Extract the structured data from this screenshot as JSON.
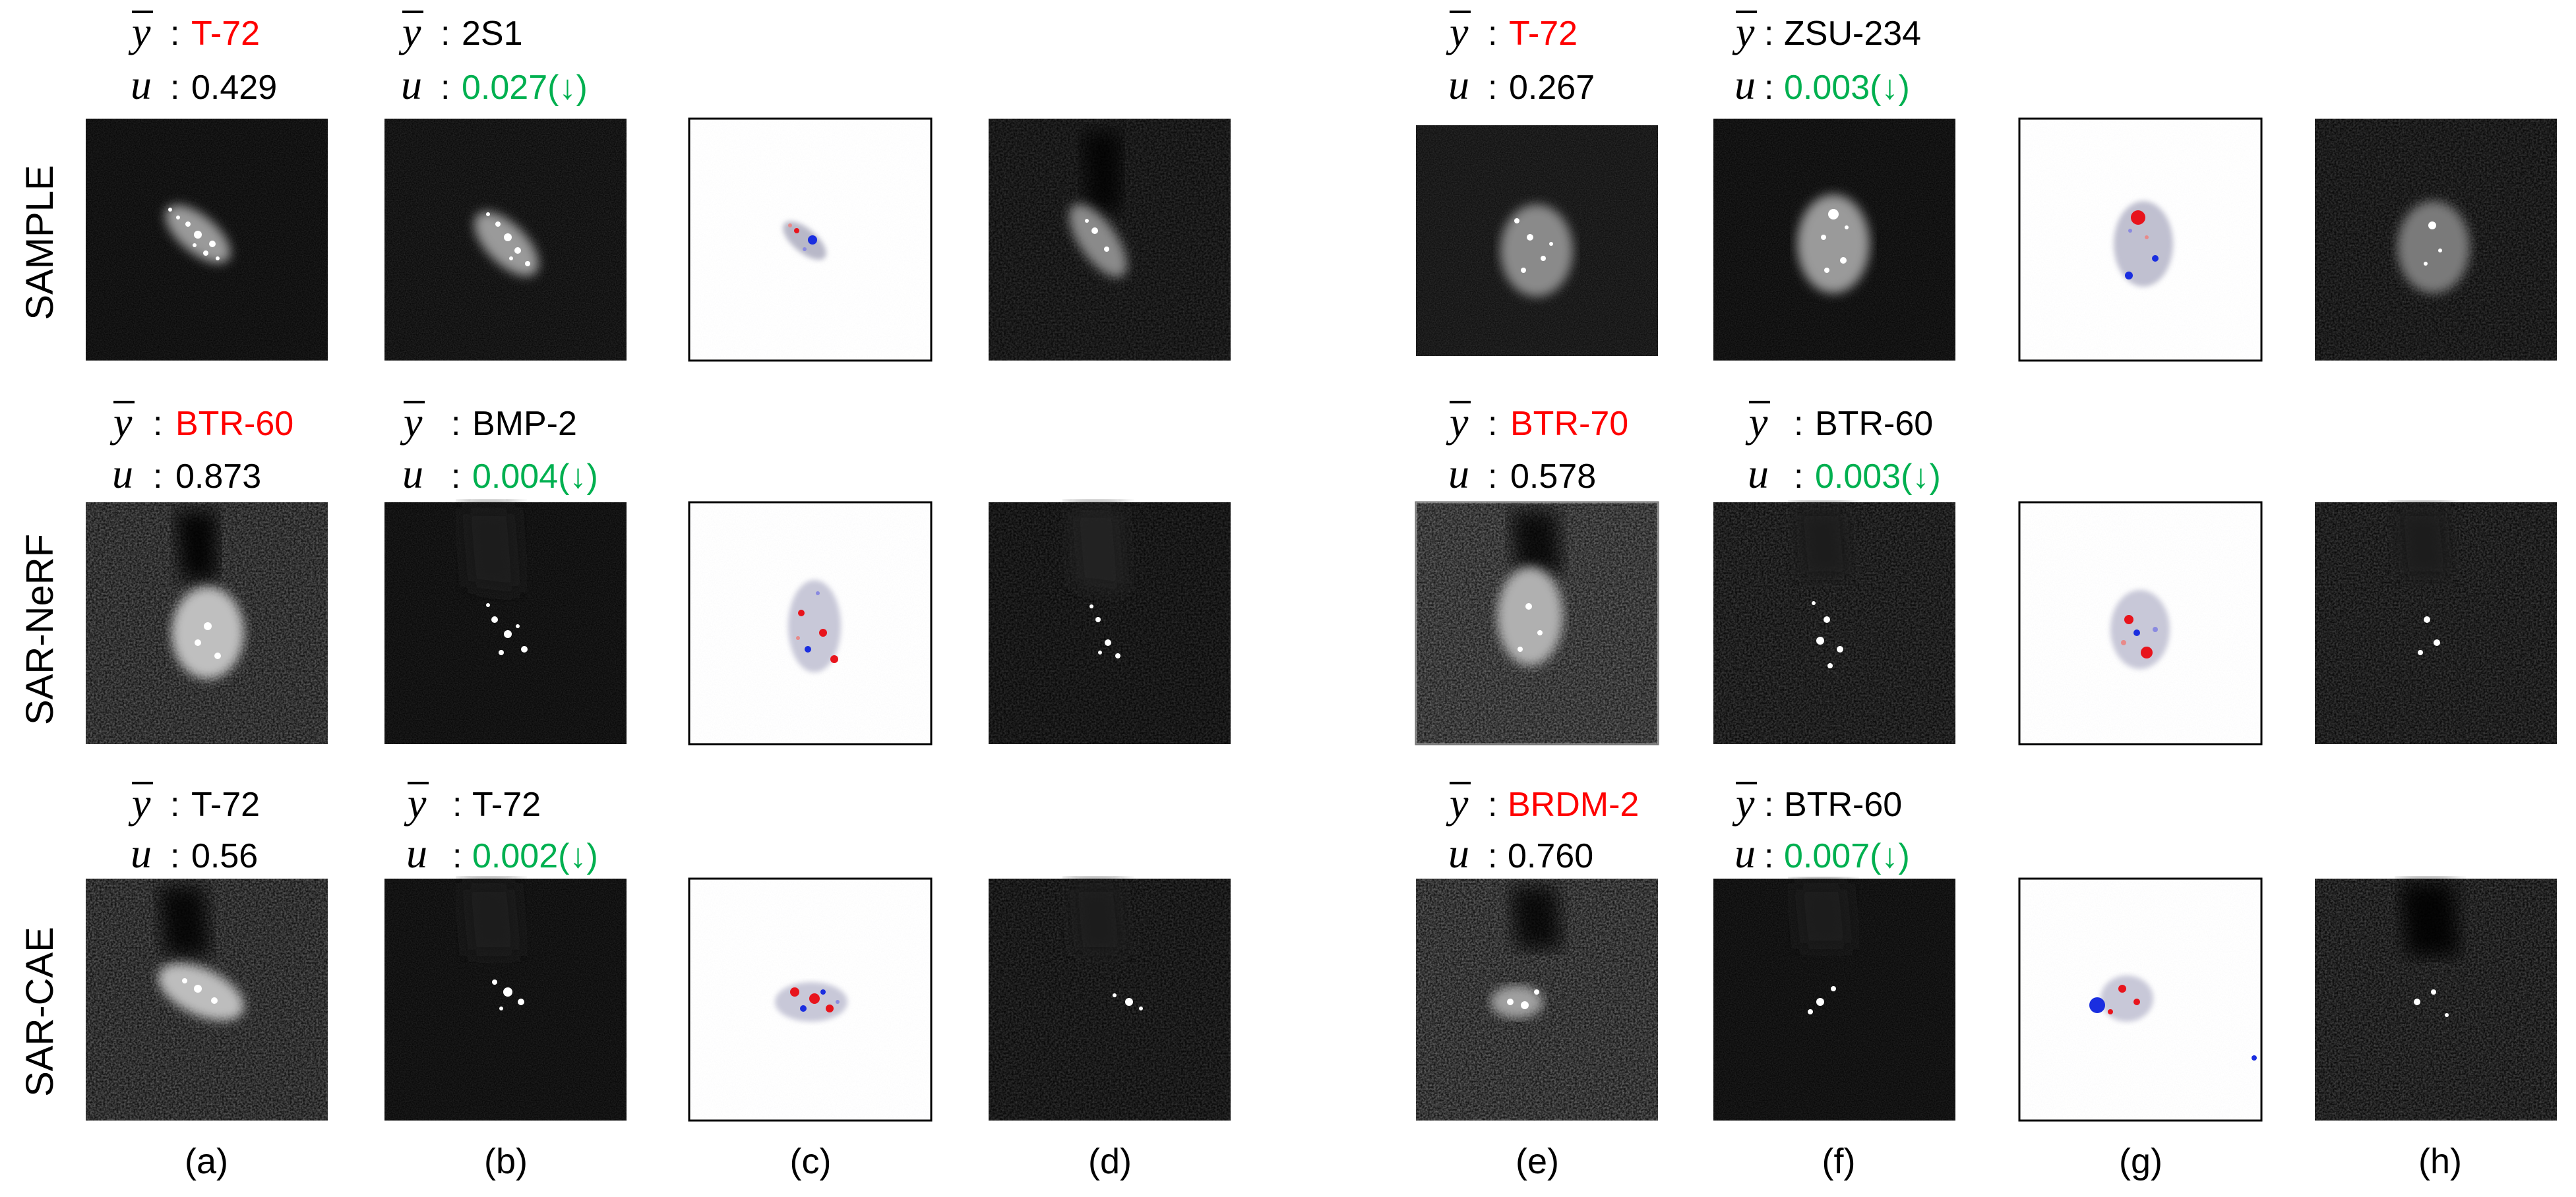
{
  "figure": {
    "row_labels": [
      "SAMPLE",
      "SAR-NeRF",
      "SAR-CAE"
    ],
    "column_labels": [
      "(a)",
      "(b)",
      "(c)",
      "(d)",
      "(e)",
      "(f)",
      "(g)",
      "(h)"
    ],
    "symbols": {
      "y_bar": "y",
      "u": "u",
      "separator": ":"
    },
    "colors": {
      "red": "#ff0000",
      "green": "#00b050",
      "black": "#000000",
      "heatmap_red": "#e8141c",
      "heatmap_blue": "#1a2ee0"
    },
    "annotations": [
      {
        "row": 0,
        "col": "a",
        "y": "T-72",
        "y_color": "red",
        "u": "0.429",
        "u_color": "black"
      },
      {
        "row": 0,
        "col": "b",
        "y": "2S1",
        "y_color": "black",
        "u": "0.027(↓)",
        "u_color": "green"
      },
      {
        "row": 0,
        "col": "e",
        "y": "T-72",
        "y_color": "red",
        "u": "0.267",
        "u_color": "black"
      },
      {
        "row": 0,
        "col": "f",
        "y": "ZSU-234",
        "y_color": "black",
        "u": "0.003(↓)",
        "u_color": "green"
      },
      {
        "row": 1,
        "col": "a",
        "y": "BTR-60",
        "y_color": "red",
        "u": "0.873",
        "u_color": "black"
      },
      {
        "row": 1,
        "col": "b",
        "y": "BMP-2",
        "y_color": "black",
        "u": "0.004(↓)",
        "u_color": "green"
      },
      {
        "row": 1,
        "col": "e",
        "y": "BTR-70",
        "y_color": "red",
        "u": "0.578",
        "u_color": "black"
      },
      {
        "row": 1,
        "col": "f",
        "y": "BTR-60",
        "y_color": "black",
        "u": "0.003(↓)",
        "u_color": "green"
      },
      {
        "row": 2,
        "col": "a",
        "y": "T-72",
        "y_color": "black",
        "u": "0.56",
        "u_color": "black"
      },
      {
        "row": 2,
        "col": "b",
        "y": "T-72",
        "y_color": "black",
        "u": "0.002(↓)",
        "u_color": "green"
      },
      {
        "row": 2,
        "col": "e",
        "y": "BRDM-2",
        "y_color": "red",
        "u": "0.760",
        "u_color": "black"
      },
      {
        "row": 2,
        "col": "f",
        "y": "BTR-60",
        "y_color": "black",
        "u": "0.007(↓)",
        "u_color": "green"
      }
    ]
  }
}
